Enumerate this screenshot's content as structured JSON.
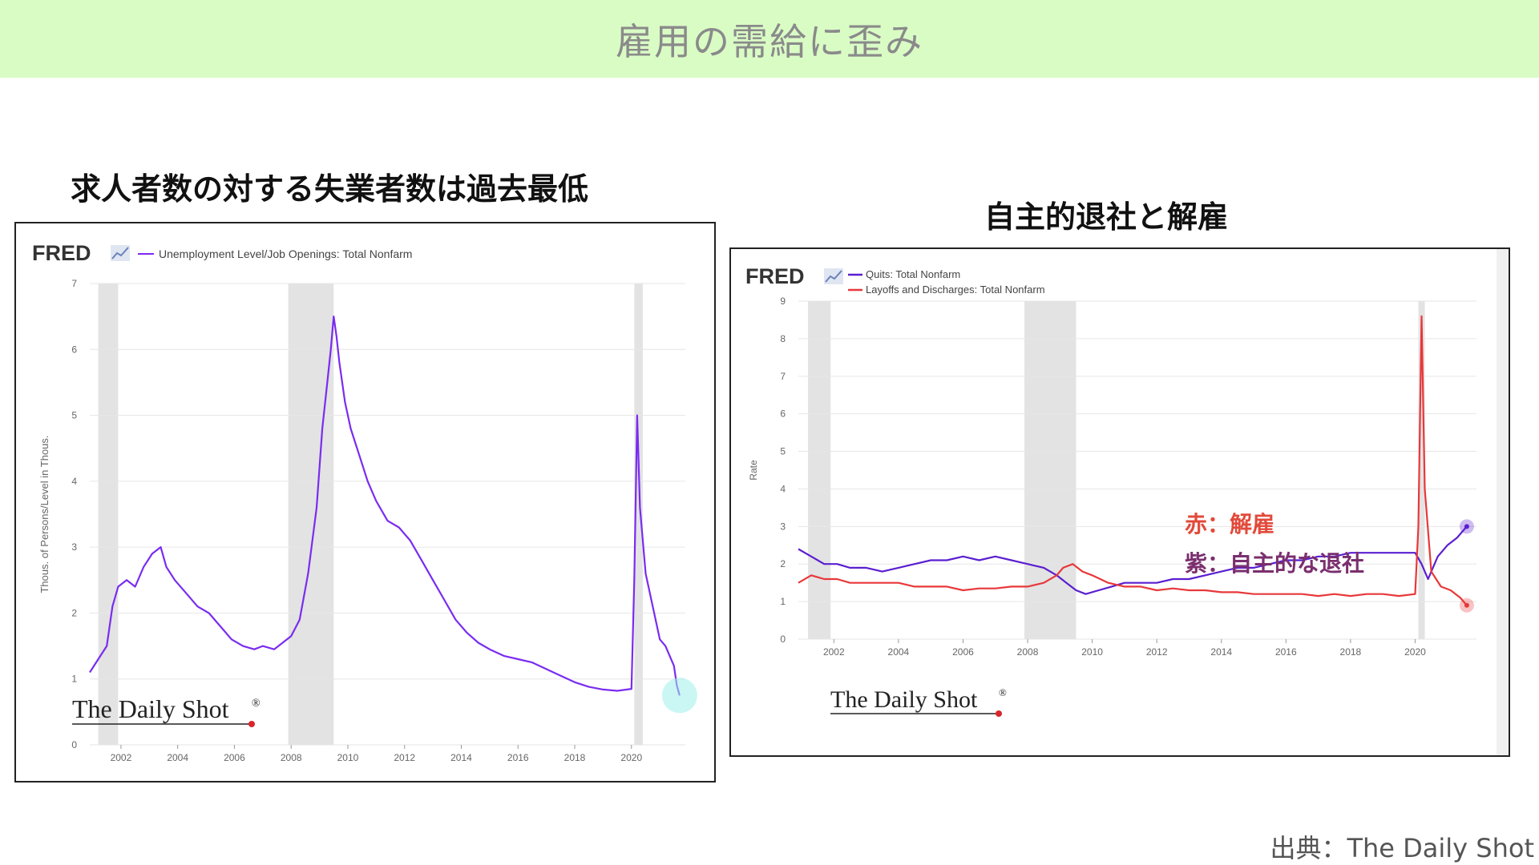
{
  "banner_title": "雇用の需給に歪み",
  "left_heading": "求人者数の対する失業者数は過去最低",
  "right_heading": "自主的退社と解雇",
  "source": "出典：The Daily Shot",
  "watermark": "The Daily Shot",
  "watermark_mark": "®",
  "fred_logo": "FRED",
  "colors": {
    "banner_bg": "#d9fcc5",
    "purple": "#7a2cf0",
    "quits_purple": "#5a1fd0",
    "red": "#e8383a",
    "recession": "#e3e3e3",
    "highlight_cyan": "#9ff0ea"
  },
  "chart_data": [
    {
      "type": "line",
      "legend": [
        "Unemployment Level/Job Openings: Total Nonfarm"
      ],
      "ylabel": "Thous. of Persons/Level in Thous.",
      "ylim": [
        0,
        7
      ],
      "yticks": [
        "0",
        "1",
        "2",
        "3",
        "4",
        "5",
        "6",
        "7"
      ],
      "xlim": [
        2000.9,
        2021.9
      ],
      "xticks": [
        "2002",
        "2004",
        "2006",
        "2008",
        "2010",
        "2012",
        "2014",
        "2016",
        "2018",
        "2020"
      ],
      "recessions": [
        [
          2001.2,
          2001.9
        ],
        [
          2007.9,
          2009.5
        ],
        [
          2020.1,
          2020.4
        ]
      ],
      "series": [
        {
          "name": "Unemployment Level/Job Openings: Total Nonfarm",
          "x": [
            2000.9,
            2001.2,
            2001.5,
            2001.7,
            2001.9,
            2002.2,
            2002.5,
            2002.8,
            2003.1,
            2003.4,
            2003.6,
            2003.9,
            2004.3,
            2004.7,
            2005.1,
            2005.5,
            2005.9,
            2006.3,
            2006.7,
            2007.0,
            2007.4,
            2007.7,
            2008.0,
            2008.3,
            2008.6,
            2008.9,
            2009.1,
            2009.3,
            2009.4,
            2009.5,
            2009.6,
            2009.7,
            2009.9,
            2010.1,
            2010.4,
            2010.7,
            2011.0,
            2011.4,
            2011.8,
            2012.2,
            2012.6,
            2013.0,
            2013.4,
            2013.8,
            2014.2,
            2014.6,
            2015.0,
            2015.5,
            2016.0,
            2016.5,
            2017.0,
            2017.5,
            2018.0,
            2018.5,
            2019.0,
            2019.5,
            2020.0,
            2020.1,
            2020.2,
            2020.3,
            2020.5,
            2020.8,
            2021.0,
            2021.2,
            2021.5,
            2021.6,
            2021.7
          ],
          "y": [
            1.1,
            1.3,
            1.5,
            2.1,
            2.4,
            2.5,
            2.4,
            2.7,
            2.9,
            3.0,
            2.7,
            2.5,
            2.3,
            2.1,
            2.0,
            1.8,
            1.6,
            1.5,
            1.45,
            1.5,
            1.45,
            1.55,
            1.65,
            1.9,
            2.6,
            3.6,
            4.8,
            5.6,
            6.0,
            6.5,
            6.2,
            5.8,
            5.2,
            4.8,
            4.4,
            4.0,
            3.7,
            3.4,
            3.3,
            3.1,
            2.8,
            2.5,
            2.2,
            1.9,
            1.7,
            1.55,
            1.45,
            1.35,
            1.3,
            1.25,
            1.15,
            1.05,
            0.95,
            0.88,
            0.84,
            0.82,
            0.85,
            2.5,
            5.0,
            3.6,
            2.6,
            2.0,
            1.6,
            1.5,
            1.2,
            0.9,
            0.75
          ]
        }
      ],
      "highlight_end": true
    },
    {
      "type": "line",
      "legend": [
        "Quits: Total Nonfarm",
        "Layoffs and Discharges: Total Nonfarm"
      ],
      "ylabel": "Rate",
      "ylim": [
        0,
        9
      ],
      "yticks": [
        "0",
        "1",
        "2",
        "3",
        "4",
        "5",
        "6",
        "7",
        "8",
        "9"
      ],
      "xlim": [
        2000.9,
        2021.9
      ],
      "xticks": [
        "2002",
        "2004",
        "2006",
        "2008",
        "2010",
        "2012",
        "2014",
        "2016",
        "2018",
        "2020"
      ],
      "recessions": [
        [
          2001.2,
          2001.9
        ],
        [
          2007.9,
          2009.5
        ],
        [
          2020.1,
          2020.3
        ]
      ],
      "annotations": [
        "赤：解雇",
        "紫：自主的な退社"
      ],
      "series": [
        {
          "name": "Quits: Total Nonfarm",
          "x": [
            2000.9,
            2001.3,
            2001.7,
            2002.1,
            2002.5,
            2003.0,
            2003.5,
            2004.0,
            2004.5,
            2005.0,
            2005.5,
            2006.0,
            2006.5,
            2007.0,
            2007.5,
            2008.0,
            2008.5,
            2008.9,
            2009.2,
            2009.5,
            2009.8,
            2010.2,
            2010.6,
            2011.0,
            2011.5,
            2012.0,
            2012.5,
            2013.0,
            2013.5,
            2014.0,
            2014.5,
            2015.0,
            2015.5,
            2016.0,
            2016.5,
            2017.0,
            2017.5,
            2018.0,
            2018.5,
            2019.0,
            2019.5,
            2020.0,
            2020.2,
            2020.4,
            2020.7,
            2021.0,
            2021.3,
            2021.6
          ],
          "y": [
            2.4,
            2.2,
            2.0,
            2.0,
            1.9,
            1.9,
            1.8,
            1.9,
            2.0,
            2.1,
            2.1,
            2.2,
            2.1,
            2.2,
            2.1,
            2.0,
            1.9,
            1.7,
            1.5,
            1.3,
            1.2,
            1.3,
            1.4,
            1.5,
            1.5,
            1.5,
            1.6,
            1.6,
            1.7,
            1.8,
            1.9,
            1.9,
            2.0,
            2.1,
            2.1,
            2.2,
            2.2,
            2.3,
            2.3,
            2.3,
            2.3,
            2.3,
            2.0,
            1.6,
            2.2,
            2.5,
            2.7,
            3.0
          ]
        },
        {
          "name": "Layoffs and Discharges: Total Nonfarm",
          "x": [
            2000.9,
            2001.3,
            2001.7,
            2002.1,
            2002.5,
            2003.0,
            2003.5,
            2004.0,
            2004.5,
            2005.0,
            2005.5,
            2006.0,
            2006.5,
            2007.0,
            2007.5,
            2008.0,
            2008.5,
            2008.9,
            2009.1,
            2009.4,
            2009.7,
            2010.0,
            2010.5,
            2011.0,
            2011.5,
            2012.0,
            2012.5,
            2013.0,
            2013.5,
            2014.0,
            2014.5,
            2015.0,
            2015.5,
            2016.0,
            2016.5,
            2017.0,
            2017.5,
            2018.0,
            2018.5,
            2019.0,
            2019.5,
            2020.0,
            2020.1,
            2020.2,
            2020.3,
            2020.5,
            2020.8,
            2021.1,
            2021.4,
            2021.6
          ],
          "y": [
            1.5,
            1.7,
            1.6,
            1.6,
            1.5,
            1.5,
            1.5,
            1.5,
            1.4,
            1.4,
            1.4,
            1.3,
            1.35,
            1.35,
            1.4,
            1.4,
            1.5,
            1.7,
            1.9,
            2.0,
            1.8,
            1.7,
            1.5,
            1.4,
            1.4,
            1.3,
            1.35,
            1.3,
            1.3,
            1.25,
            1.25,
            1.2,
            1.2,
            1.2,
            1.2,
            1.15,
            1.2,
            1.15,
            1.2,
            1.2,
            1.15,
            1.2,
            3.0,
            8.6,
            4.0,
            1.8,
            1.4,
            1.3,
            1.1,
            0.9
          ]
        }
      ]
    }
  ]
}
